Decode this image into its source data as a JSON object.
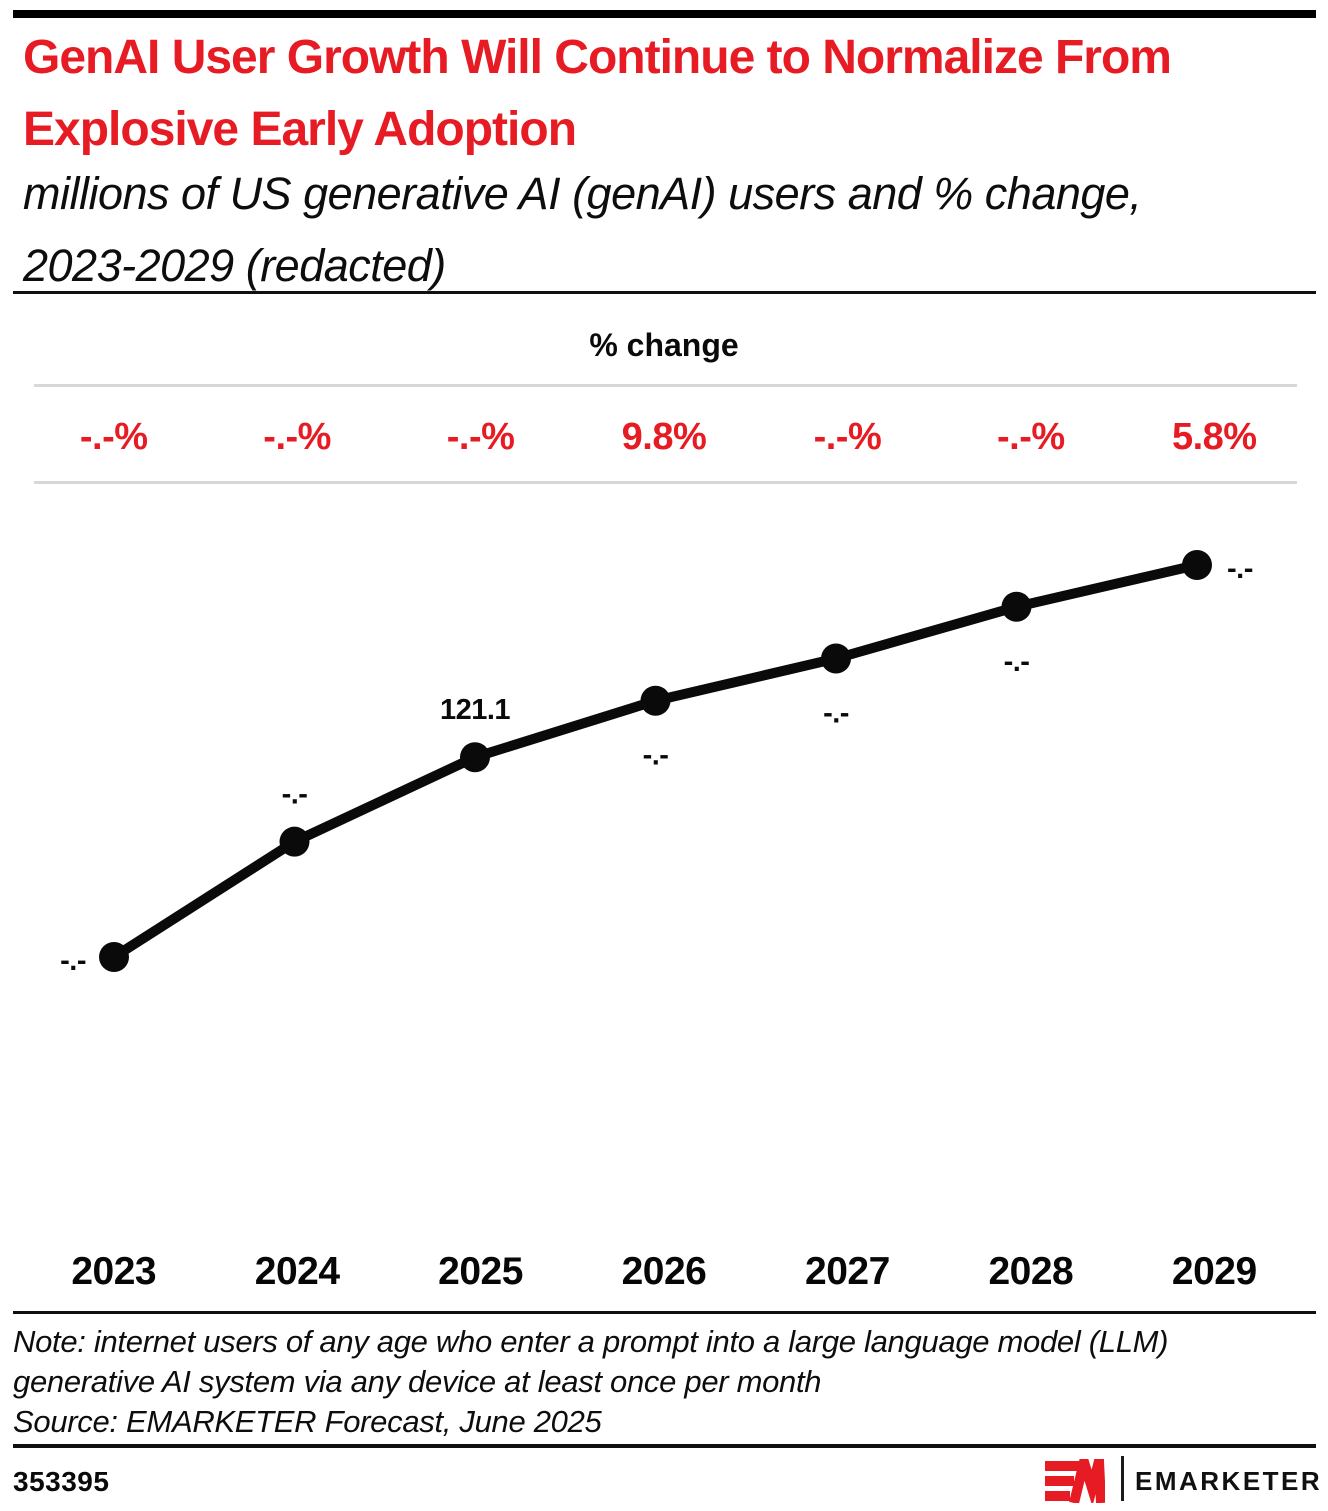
{
  "header": {
    "title": "GenAI User Growth Will Continue to Normalize From Explosive Early Adoption",
    "subtitle": "millions of US generative AI (genAI) users and % change, 2023-2029 (redacted)"
  },
  "pct_change_row": {
    "header": "% change",
    "values": [
      "-.-%",
      "-.-%",
      "-.-%",
      "9.8%",
      "-.-%",
      "-.-%",
      "5.8%"
    ]
  },
  "chart_data": {
    "type": "line",
    "title": "GenAI User Growth Will Continue to Normalize From Explosive Early Adoption",
    "subtitle": "millions of US generative AI (genAI) users and % change, 2023-2029 (redacted)",
    "categories": [
      "2023",
      "2024",
      "2025",
      "2026",
      "2027",
      "2028",
      "2029"
    ],
    "series": [
      {
        "name": "US genAI users (millions)",
        "values": [
          79.0,
          103.3,
          121.1,
          133.0,
          141.9,
          152.8,
          161.6
        ],
        "point_labels": [
          "-.-",
          "-.-",
          "121.1",
          "-.-",
          "-.-",
          "-.-",
          "-.-"
        ],
        "values_note": "only 2025 is labeled (121.1); redacted points shown as -.- with values estimated from point positions"
      }
    ],
    "pct_change_labels": [
      "-.-%",
      "-.-%",
      "-.-%",
      "9.8%",
      "-.-%",
      "-.-%",
      "5.8%"
    ],
    "legend": "none",
    "grid": "off",
    "line_color": "#0a0a0a",
    "pct_label_color": "#e61b23"
  },
  "colors": {
    "accent_red": "#e61b23",
    "rule_gray": "#d8d8d8",
    "bar_black": "#000000"
  },
  "footnote": {
    "note": "Note: internet users of any age who enter a prompt into a large language model (LLM) generative AI system via any device at least once per month",
    "source": "Source: EMARKETER Forecast, June 2025"
  },
  "footer": {
    "chart_id": "353395",
    "brand": "EMARKETER"
  }
}
